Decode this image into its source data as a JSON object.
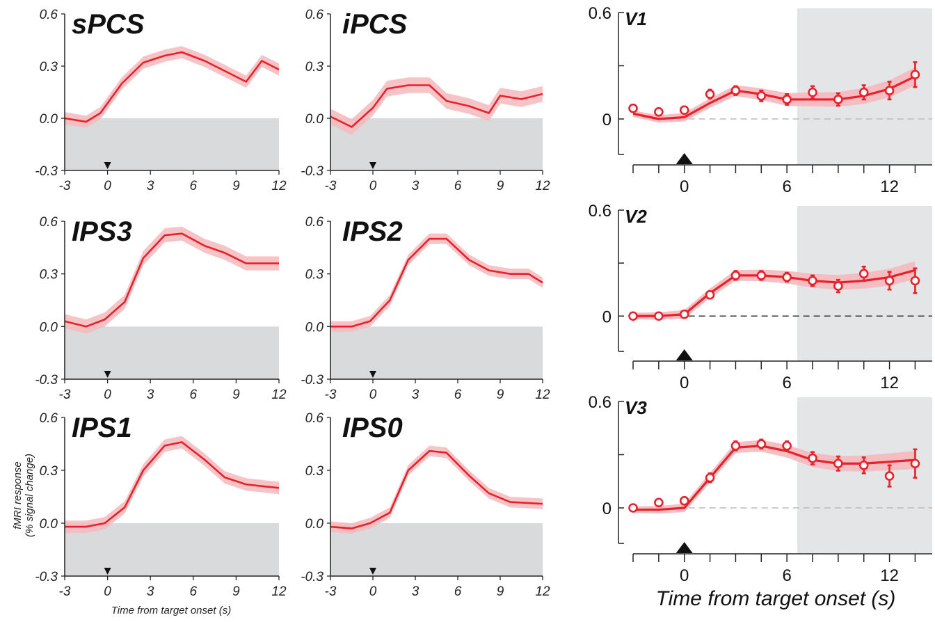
{
  "figure": {
    "left_xlabel": "Time from target onset (s)",
    "left_ylabel_line1": "fMRI response",
    "left_ylabel_line2": "(% signal change)",
    "right_xlabel": "Time from target onset (s)"
  },
  "colors": {
    "line": "#e8202a",
    "band": "#f4b8bc",
    "gray_region": "#d9dadb",
    "gray_region_right": "#e4e5e6",
    "axis": "#222222"
  },
  "chart_data": [
    {
      "type": "line",
      "title": "sPCS",
      "xlim": [
        -3,
        12
      ],
      "ylim": [
        -0.3,
        0.6
      ],
      "xticks": [
        "-3",
        "0",
        "3",
        "6",
        "9",
        "12"
      ],
      "yticks": [
        "0.6",
        "0.3",
        "0.0",
        "-0.3"
      ],
      "x": [
        -3,
        -1.5,
        -0.5,
        1,
        2.5,
        4,
        5.2,
        6.8,
        8.5,
        9.7,
        10.8,
        12
      ],
      "y": [
        0.0,
        -0.02,
        0.03,
        0.2,
        0.32,
        0.36,
        0.38,
        0.33,
        0.26,
        0.21,
        0.33,
        0.28
      ],
      "err": 0.035,
      "shaded_ylim": [
        -0.3,
        0.0
      ],
      "onset_marker_x": 0
    },
    {
      "type": "line",
      "title": "iPCS",
      "xlim": [
        -3,
        12
      ],
      "ylim": [
        -0.3,
        0.6
      ],
      "xticks": [
        "-3",
        "0",
        "3",
        "6",
        "9",
        "12"
      ],
      "yticks": [
        "0.6",
        "0.3",
        "0.0",
        "-0.3"
      ],
      "x": [
        -3,
        -1.5,
        0,
        1,
        2.5,
        4,
        5.2,
        6.8,
        8.2,
        9,
        10.5,
        12
      ],
      "y": [
        0.01,
        -0.05,
        0.06,
        0.17,
        0.19,
        0.19,
        0.1,
        0.07,
        0.03,
        0.13,
        0.11,
        0.14
      ],
      "err": 0.045,
      "shaded_ylim": [
        -0.3,
        0.0
      ],
      "onset_marker_x": 0
    },
    {
      "type": "line",
      "title": "IPS3",
      "xlim": [
        -3,
        12
      ],
      "ylim": [
        -0.3,
        0.6
      ],
      "xticks": [
        "-3",
        "0",
        "3",
        "6",
        "9",
        "12"
      ],
      "yticks": [
        "0.6",
        "0.3",
        "0.0",
        "-0.3"
      ],
      "x": [
        -3,
        -1.5,
        -0.2,
        1.2,
        2.5,
        4,
        5.2,
        6.8,
        8.2,
        9.7,
        12
      ],
      "y": [
        0.03,
        0.0,
        0.04,
        0.14,
        0.39,
        0.52,
        0.53,
        0.46,
        0.42,
        0.36,
        0.36
      ],
      "err": 0.04,
      "shaded_ylim": [
        -0.3,
        0.0
      ],
      "onset_marker_x": 0
    },
    {
      "type": "line",
      "title": "IPS2",
      "xlim": [
        -3,
        12
      ],
      "ylim": [
        -0.3,
        0.6
      ],
      "xticks": [
        "-3",
        "0",
        "3",
        "6",
        "9",
        "12"
      ],
      "yticks": [
        "0.6",
        "0.3",
        "0.0",
        "-0.3"
      ],
      "x": [
        -3,
        -1.5,
        -0.2,
        1.2,
        2.5,
        4,
        5.2,
        6.8,
        8.2,
        9.7,
        11,
        12
      ],
      "y": [
        0.0,
        0.0,
        0.03,
        0.15,
        0.38,
        0.5,
        0.5,
        0.38,
        0.32,
        0.3,
        0.3,
        0.25
      ],
      "err": 0.03,
      "shaded_ylim": [
        -0.3,
        0.0
      ],
      "onset_marker_x": 0
    },
    {
      "type": "line",
      "title": "IPS1",
      "xlim": [
        -3,
        12
      ],
      "ylim": [
        -0.3,
        0.6
      ],
      "xticks": [
        "-3",
        "0",
        "3",
        "6",
        "9",
        "12"
      ],
      "yticks": [
        "0.6",
        "0.3",
        "0.0",
        "-0.3"
      ],
      "x": [
        -3,
        -1.5,
        -0.2,
        1.2,
        2.5,
        4,
        5.2,
        6.8,
        8.2,
        9.7,
        12
      ],
      "y": [
        -0.02,
        -0.02,
        0.0,
        0.09,
        0.3,
        0.44,
        0.46,
        0.36,
        0.26,
        0.22,
        0.2
      ],
      "err": 0.035,
      "shaded_ylim": [
        -0.3,
        0.0
      ],
      "onset_marker_x": 0
    },
    {
      "type": "line",
      "title": "IPS0",
      "xlim": [
        -3,
        12
      ],
      "ylim": [
        -0.3,
        0.6
      ],
      "xticks": [
        "-3",
        "0",
        "3",
        "6",
        "9",
        "12"
      ],
      "yticks": [
        "0.6",
        "0.3",
        "0.0",
        "-0.3"
      ],
      "x": [
        -3,
        -1.5,
        -0.2,
        1.2,
        2.5,
        4,
        5.2,
        6.8,
        8.2,
        9.7,
        12
      ],
      "y": [
        -0.02,
        -0.03,
        0.0,
        0.06,
        0.3,
        0.41,
        0.4,
        0.27,
        0.17,
        0.12,
        0.11
      ],
      "err": 0.03,
      "shaded_ylim": [
        -0.3,
        0.0
      ],
      "onset_marker_x": 0
    },
    {
      "type": "scatter",
      "title": "V1",
      "xlim": [
        -3,
        14.5
      ],
      "ylim": [
        -0.2,
        0.6
      ],
      "xticks": [
        "0",
        "6",
        "12"
      ],
      "yticks": [
        "0.6",
        "0"
      ],
      "shaded_xlim": [
        6.6,
        14.5
      ],
      "onset_marker_x": 0,
      "points_x": [
        -3,
        -1.5,
        0,
        1.5,
        3,
        4.5,
        6,
        7.5,
        9,
        10.5,
        12,
        13.5
      ],
      "points_y": [
        0.06,
        0.04,
        0.05,
        0.14,
        0.16,
        0.13,
        0.11,
        0.15,
        0.11,
        0.15,
        0.16,
        0.25
      ],
      "points_err": [
        0.02,
        0.02,
        0.02,
        0.025,
        0.025,
        0.03,
        0.03,
        0.035,
        0.035,
        0.04,
        0.05,
        0.07
      ],
      "model_x": [
        -3,
        -1.5,
        0,
        1.5,
        3,
        4.5,
        6,
        7.5,
        9,
        10.5,
        12,
        13.5
      ],
      "model_y": [
        0.03,
        0.0,
        0.01,
        0.09,
        0.16,
        0.14,
        0.11,
        0.11,
        0.11,
        0.13,
        0.17,
        0.24
      ],
      "band_halfwidth": 0.018
    },
    {
      "type": "scatter",
      "title": "V2",
      "xlim": [
        -3,
        14.5
      ],
      "ylim": [
        -0.2,
        0.6
      ],
      "xticks": [
        "0",
        "6",
        "12"
      ],
      "yticks": [
        "0.6",
        "0"
      ],
      "shaded_xlim": [
        6.6,
        14.5
      ],
      "onset_marker_x": 0,
      "points_x": [
        -3,
        -1.5,
        0,
        1.5,
        3,
        4.5,
        6,
        7.5,
        9,
        10.5,
        12,
        13.5
      ],
      "points_y": [
        0.0,
        0.0,
        0.01,
        0.12,
        0.23,
        0.23,
        0.22,
        0.2,
        0.17,
        0.24,
        0.2,
        0.2
      ],
      "points_err": [
        0.01,
        0.01,
        0.015,
        0.02,
        0.025,
        0.025,
        0.025,
        0.03,
        0.035,
        0.04,
        0.05,
        0.07
      ],
      "model_x": [
        -3,
        -1.5,
        0,
        1.5,
        3,
        4.5,
        6,
        7.5,
        9,
        10.5,
        12,
        13.5
      ],
      "model_y": [
        0.0,
        0.0,
        0.01,
        0.13,
        0.23,
        0.23,
        0.22,
        0.2,
        0.19,
        0.2,
        0.22,
        0.26
      ],
      "band_halfwidth": 0.018
    },
    {
      "type": "scatter",
      "title": "V3",
      "xlim": [
        -3,
        14.5
      ],
      "ylim": [
        -0.2,
        0.6
      ],
      "xticks": [
        "0",
        "6",
        "12"
      ],
      "yticks": [
        "0.6",
        "0"
      ],
      "shaded_xlim": [
        6.6,
        14.5
      ],
      "onset_marker_x": 0,
      "points_x": [
        -3,
        -1.5,
        0,
        1.5,
        3,
        4.5,
        6,
        7.5,
        9,
        10.5,
        12,
        13.5
      ],
      "points_y": [
        0.0,
        0.03,
        0.04,
        0.17,
        0.35,
        0.36,
        0.35,
        0.28,
        0.25,
        0.24,
        0.18,
        0.25
      ],
      "points_err": [
        0.015,
        0.015,
        0.02,
        0.025,
        0.025,
        0.025,
        0.025,
        0.035,
        0.04,
        0.045,
        0.06,
        0.08
      ],
      "model_x": [
        -3,
        -1.5,
        0,
        1.5,
        3,
        4.5,
        6,
        7.5,
        9,
        10.5,
        12,
        13.5
      ],
      "model_y": [
        -0.01,
        -0.01,
        0.0,
        0.17,
        0.34,
        0.35,
        0.32,
        0.27,
        0.25,
        0.25,
        0.26,
        0.27
      ],
      "band_halfwidth": 0.018
    }
  ]
}
